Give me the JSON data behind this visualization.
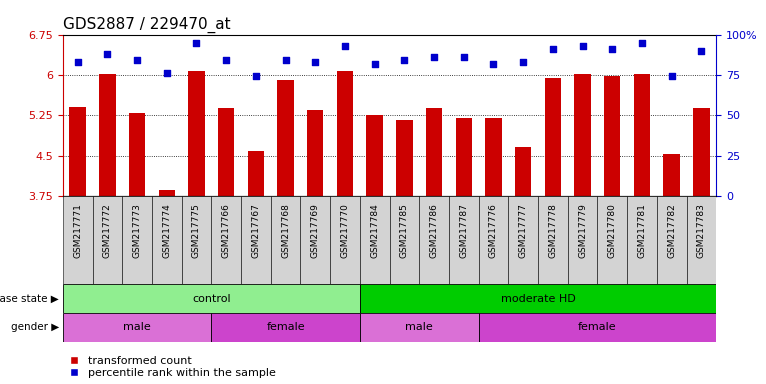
{
  "title": "GDS2887 / 229470_at",
  "samples": [
    "GSM217771",
    "GSM217772",
    "GSM217773",
    "GSM217774",
    "GSM217775",
    "GSM217766",
    "GSM217767",
    "GSM217768",
    "GSM217769",
    "GSM217770",
    "GSM217784",
    "GSM217785",
    "GSM217786",
    "GSM217787",
    "GSM217776",
    "GSM217777",
    "GSM217778",
    "GSM217779",
    "GSM217780",
    "GSM217781",
    "GSM217782",
    "GSM217783"
  ],
  "transformed_count": [
    5.4,
    6.02,
    5.3,
    3.85,
    6.08,
    5.38,
    4.58,
    5.9,
    5.35,
    6.08,
    5.25,
    5.17,
    5.38,
    5.2,
    5.2,
    4.65,
    5.95,
    6.02,
    5.97,
    6.02,
    4.53,
    5.38
  ],
  "percentile": [
    83,
    88,
    84,
    76,
    95,
    84,
    74,
    84,
    83,
    93,
    82,
    84,
    86,
    86,
    82,
    83,
    91,
    93,
    91,
    95,
    74,
    90
  ],
  "ylim_left": [
    3.75,
    6.75
  ],
  "ylim_right": [
    0,
    100
  ],
  "yticks_left": [
    3.75,
    4.5,
    5.25,
    6.0,
    6.75
  ],
  "ytick_labels_left": [
    "3.75",
    "4.5",
    "5.25",
    "6",
    "6.75"
  ],
  "yticks_right": [
    0,
    25,
    50,
    75,
    100
  ],
  "ytick_labels_right": [
    "0",
    "25",
    "50",
    "75",
    "100%"
  ],
  "bar_color": "#cc0000",
  "dot_color": "#0000cc",
  "disease_state_groups": [
    {
      "label": "control",
      "start": 0,
      "end": 10,
      "color": "#90ee90"
    },
    {
      "label": "moderate HD",
      "start": 10,
      "end": 22,
      "color": "#00cc00"
    }
  ],
  "gender_groups": [
    {
      "label": "male",
      "start": 0,
      "end": 5,
      "color": "#da70d6"
    },
    {
      "label": "female",
      "start": 5,
      "end": 10,
      "color": "#cc44cc"
    },
    {
      "label": "male",
      "start": 10,
      "end": 14,
      "color": "#da70d6"
    },
    {
      "label": "female",
      "start": 14,
      "end": 22,
      "color": "#cc44cc"
    }
  ],
  "legend_items": [
    {
      "label": "transformed count",
      "color": "#cc0000"
    },
    {
      "label": "percentile rank within the sample",
      "color": "#0000cc"
    }
  ],
  "left_axis_color": "#cc0000",
  "right_axis_color": "#0000cc",
  "background_color": "#ffffff",
  "title_fontsize": 11,
  "tick_label_fontsize": 6.5,
  "strip_label_fontsize": 8,
  "legend_fontsize": 8
}
